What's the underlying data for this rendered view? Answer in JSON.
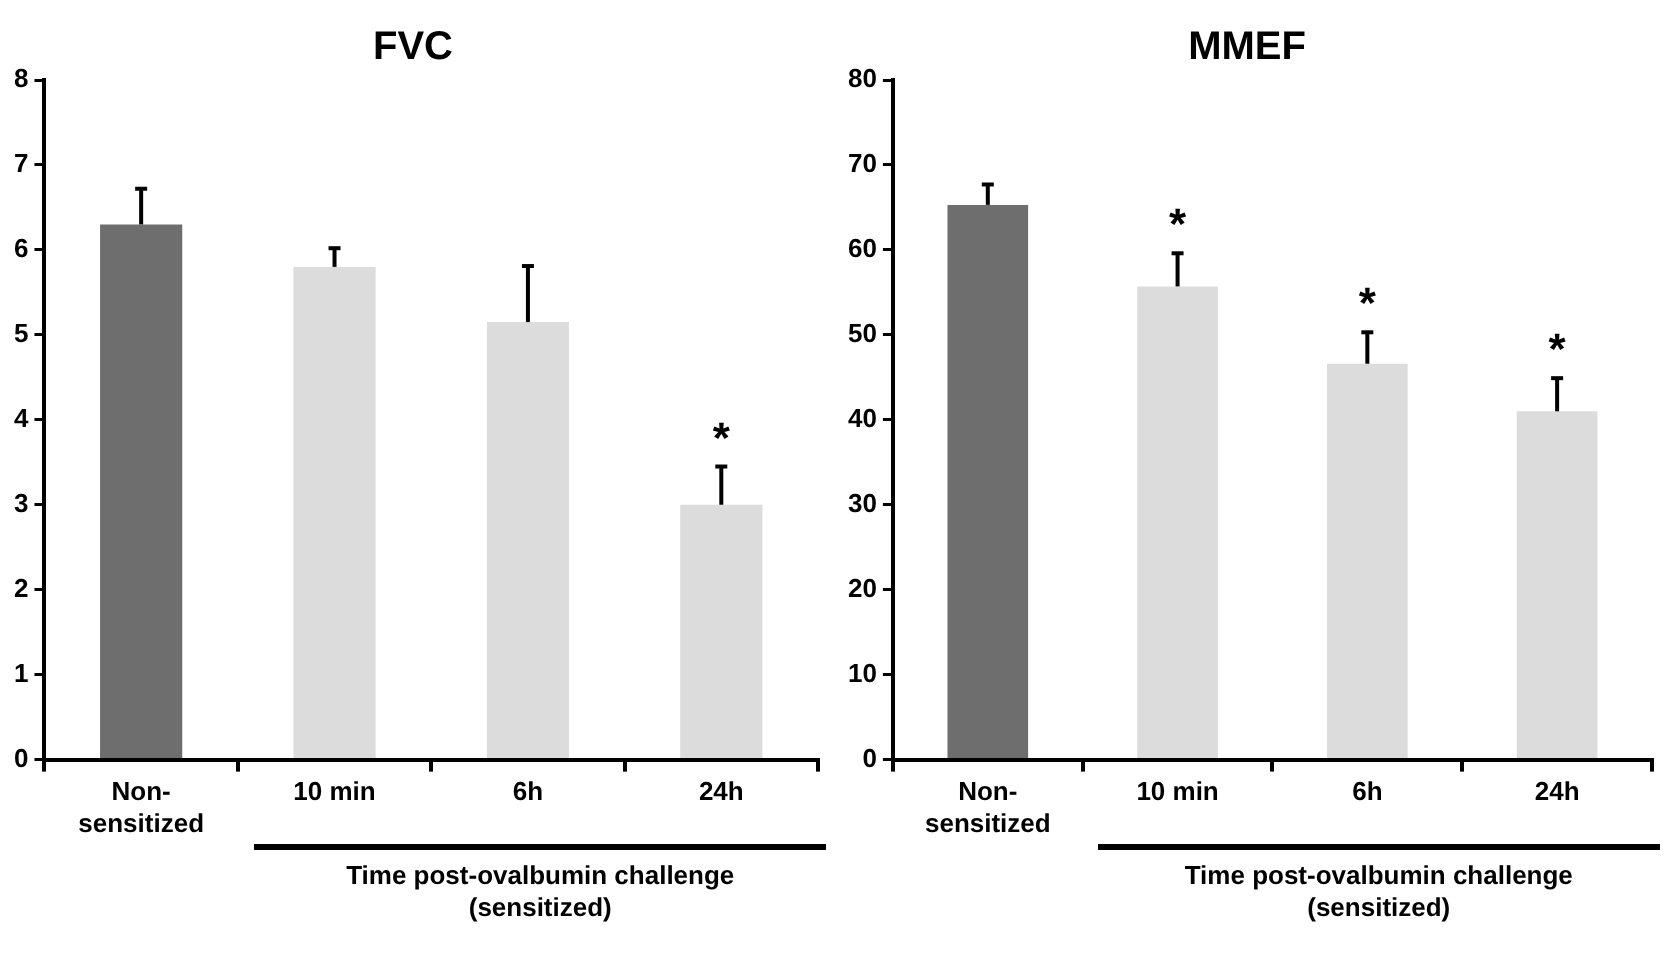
{
  "chart_data": [
    {
      "type": "bar",
      "title": "FVC",
      "categories": [
        "Non-\nsensitized",
        "10 min",
        "6h",
        "24h"
      ],
      "values": [
        6.3,
        5.8,
        5.15,
        3.0
      ],
      "colors": [
        "#6e6e6e",
        "#dcdcdc",
        "#dcdcdc",
        "#dcdcdc"
      ],
      "errors": [
        [
          6.3,
          6.72
        ],
        [
          5.8,
          6.02
        ],
        [
          5.15,
          5.81
        ],
        [
          3.0,
          3.45
        ]
      ],
      "ylim": [
        0,
        8
      ],
      "yticks": [
        0,
        1,
        2,
        3,
        4,
        5,
        6,
        7,
        8
      ],
      "grid": false,
      "legend": false,
      "xlabel": "Time post-ovalbumin challenge\n(sensitized)",
      "annotations": [
        {
          "text": "*",
          "x": "24h",
          "y": 3.45
        }
      ]
    },
    {
      "type": "bar",
      "title": "MMEF",
      "categories": [
        "Non-\nsensitized",
        "10 min",
        "6h",
        "24h"
      ],
      "values": [
        65.3,
        55.7,
        46.6,
        41.0
      ],
      "colors": [
        "#6e6e6e",
        "#dcdcdc",
        "#dcdcdc",
        "#dcdcdc"
      ],
      "errors": [
        [
          65.3,
          67.7
        ],
        [
          55.7,
          59.6
        ],
        [
          46.6,
          50.3
        ],
        [
          41.0,
          44.9
        ]
      ],
      "ylim": [
        0,
        80
      ],
      "yticks": [
        0,
        10,
        20,
        30,
        40,
        50,
        60,
        70,
        80
      ],
      "grid": false,
      "legend": false,
      "xlabel": "Time post-ovalbumin challenge\n(sensitized)",
      "annotations": [
        {
          "text": "*",
          "x": "10 min",
          "y": 59.6
        },
        {
          "text": "*",
          "x": "6h",
          "y": 50.3
        },
        {
          "text": "*",
          "x": "24h",
          "y": 44.9
        }
      ]
    }
  ]
}
